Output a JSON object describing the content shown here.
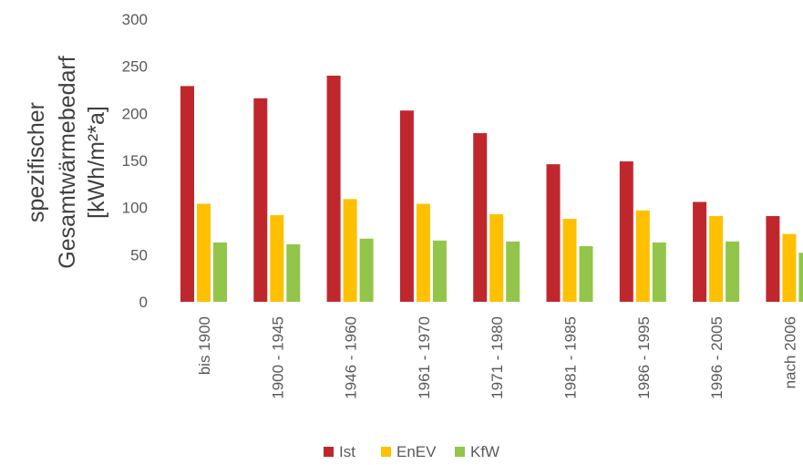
{
  "chart_data": {
    "type": "bar",
    "title": "",
    "xlabel": "",
    "ylabel_lines": [
      "spezifischer",
      "Gesamtwärmebedarf",
      "[kWh/m²*a]"
    ],
    "ylim": [
      0,
      300
    ],
    "yticks": [
      0,
      50,
      100,
      150,
      200,
      250,
      300
    ],
    "grid": false,
    "legend_position": "bottom",
    "categories": [
      "bis 1900",
      "1900 - 1945",
      "1946 - 1960",
      "1961 - 1970",
      "1971 - 1980",
      "1981 - 1985",
      "1986 - 1995",
      "1996 - 2005",
      "nach 2006"
    ],
    "series": [
      {
        "name": "Ist",
        "color": "#c0272d",
        "values": [
          229,
          216,
          240,
          203,
          179,
          146,
          149,
          106,
          91
        ]
      },
      {
        "name": "EnEV",
        "color": "#ffc000",
        "values": [
          104,
          92,
          109,
          104,
          93,
          88,
          97,
          91,
          72
        ]
      },
      {
        "name": "KfW",
        "color": "#92c54a",
        "values": [
          63,
          61,
          67,
          65,
          64,
          59,
          63,
          64,
          52
        ]
      }
    ]
  }
}
